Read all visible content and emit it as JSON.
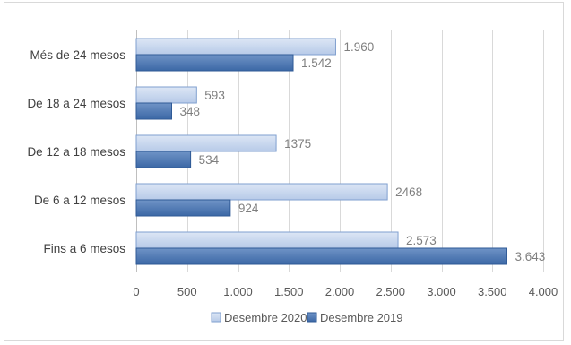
{
  "chart_data": {
    "type": "bar",
    "orientation": "horizontal",
    "categories": [
      "Més de 24 mesos",
      "De 18 a 24 mesos",
      "De 12 a 18 mesos",
      "De 6 a 12 mesos",
      "Fins a 6 mesos"
    ],
    "series": [
      {
        "name": "Desembre 2020",
        "values": [
          1960,
          593,
          1375,
          2468,
          2573
        ],
        "labels": [
          "1.960",
          "593",
          "1375",
          "2468",
          "2.573"
        ],
        "color": "#c5d5ee"
      },
      {
        "name": "Desembre 2019",
        "values": [
          1542,
          348,
          534,
          924,
          3643
        ],
        "labels": [
          "1.542",
          "348",
          "534",
          "924",
          "3.643"
        ],
        "color": "#4a78b4"
      }
    ],
    "xlim": [
      0,
      4000
    ],
    "x_ticks": [
      0,
      500,
      1000,
      1500,
      2000,
      2500,
      3000,
      3500,
      4000
    ],
    "x_tick_labels": [
      "0",
      "500",
      "1.000",
      "1.500",
      "2.000",
      "2.500",
      "3.000",
      "3.500",
      "4.000"
    ],
    "grid": "vertical",
    "legend_position": "bottom",
    "title": "",
    "xlabel": "",
    "ylabel": ""
  }
}
